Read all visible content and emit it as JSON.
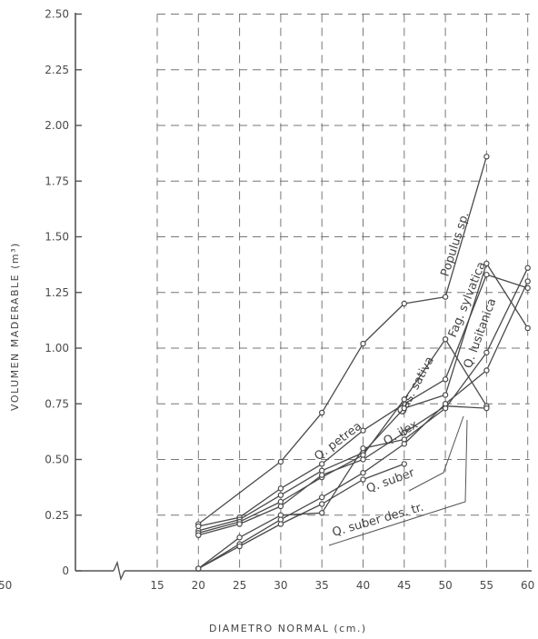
{
  "chart_data": {
    "type": "line",
    "xlabel": "DIAMETRO  NORMAL  (cm.)",
    "ylabel": "VOLUMEN  MADERABLE  (m³)",
    "x_ticks": [
      "15",
      "20",
      "25",
      "30",
      "35",
      "40",
      "45",
      "50",
      "55",
      "60"
    ],
    "y_ticks": [
      "0",
      "0.25",
      "0.50",
      "0.75",
      "1.00",
      "1.25",
      "1.50",
      "1.75",
      "2.00",
      "2.25",
      "2.50"
    ],
    "left_edge_tick": "50",
    "xlim": [
      15,
      60
    ],
    "ylim": [
      0,
      2.5
    ],
    "grid": true,
    "series": [
      {
        "name": "Populus sp.",
        "x": [
          20,
          30,
          35,
          40,
          45,
          50,
          55
        ],
        "y": [
          0.21,
          0.49,
          0.71,
          1.02,
          1.2,
          1.23,
          1.86
        ]
      },
      {
        "name": "Fag. sylvatica",
        "x": [
          20,
          25,
          30,
          35,
          40,
          45,
          50,
          55,
          60
        ],
        "y": [
          0.2,
          0.24,
          0.37,
          0.48,
          0.63,
          0.75,
          0.86,
          1.33,
          1.27
        ]
      },
      {
        "name": "Q. lusitanica",
        "x": [
          20,
          25,
          30,
          35,
          40,
          45,
          50,
          55,
          60
        ],
        "y": [
          0.18,
          0.23,
          0.34,
          0.45,
          0.53,
          0.73,
          0.79,
          1.38,
          1.09
        ]
      },
      {
        "name": "Cas. sativa",
        "x": [
          20,
          25,
          30,
          35,
          40,
          45,
          50,
          55
        ],
        "y": [
          0.17,
          0.22,
          0.31,
          0.42,
          0.52,
          0.77,
          1.04,
          0.74
        ]
      },
      {
        "name": "Q. petrea",
        "x": [
          20,
          25,
          30,
          35,
          40,
          45,
          50,
          55
        ],
        "y": [
          0.16,
          0.21,
          0.29,
          0.43,
          0.5,
          0.62,
          0.74,
          0.73
        ]
      },
      {
        "name": "Q. ilex",
        "x": [
          20,
          25,
          30,
          35,
          40,
          45,
          50,
          55,
          60
        ],
        "y": [
          0.01,
          0.15,
          0.25,
          0.26,
          0.55,
          0.59,
          0.73,
          0.98,
          1.36
        ]
      },
      {
        "name": "Q. suber",
        "x": [
          20,
          25,
          30,
          35,
          40,
          45,
          50,
          55,
          60
        ],
        "y": [
          0.01,
          0.12,
          0.23,
          0.33,
          0.44,
          0.57,
          0.75,
          0.9,
          1.3
        ]
      },
      {
        "name": "Q. suber des. tr.",
        "x": [
          20,
          25,
          30,
          35,
          40,
          45
        ],
        "y": [
          0.01,
          0.11,
          0.21,
          0.3,
          0.41,
          0.48
        ]
      }
    ]
  }
}
